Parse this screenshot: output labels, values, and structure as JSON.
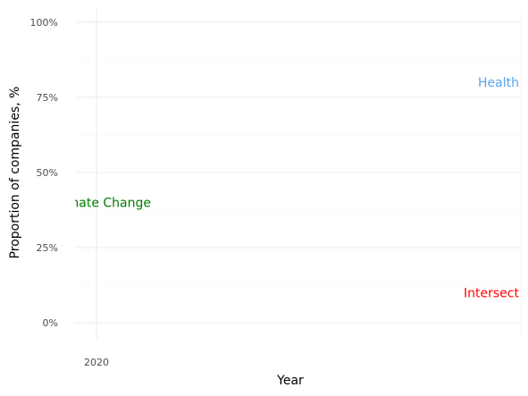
{
  "chart_data": {
    "type": "line",
    "title": "",
    "xlabel": "Year",
    "ylabel": "Proportion of companies, %",
    "x_ticks": [
      2020
    ],
    "y_ticks": [
      0,
      25,
      50,
      75,
      100
    ],
    "y_tick_labels": [
      "0%",
      "25%",
      "50%",
      "75%",
      "100%"
    ],
    "ylim": [
      0,
      100
    ],
    "grid": true,
    "legend": "none",
    "annotations": [
      {
        "text": "Climate Change",
        "x": 2020,
        "y": 40,
        "color": "#007a00"
      },
      {
        "text": "Health",
        "x": 2020,
        "y": 80,
        "color": "#5aa0f0"
      },
      {
        "text": "Intersect",
        "x": 2020,
        "y": 10,
        "color": "#ff0000"
      }
    ],
    "series": []
  }
}
